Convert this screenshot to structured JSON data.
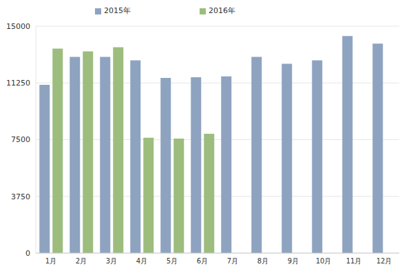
{
  "chart_data": {
    "type": "bar",
    "categories": [
      "1月",
      "2月",
      "3月",
      "4月",
      "5月",
      "6月",
      "7月",
      "8月",
      "9月",
      "10月",
      "11月",
      "12月"
    ],
    "series": [
      {
        "name": "2015年",
        "color": "#8ea3c0",
        "values": [
          11120,
          12970,
          12970,
          12740,
          11580,
          11630,
          11680,
          12970,
          12510,
          12740,
          14350,
          13850
        ]
      },
      {
        "name": "2016年",
        "color": "#9cbd7d",
        "values": [
          13520,
          13340,
          13610,
          7620,
          7570,
          7890,
          null,
          null,
          null,
          null,
          null,
          null
        ]
      }
    ],
    "ylim": [
      0,
      15000
    ],
    "yticks": [
      0,
      3750,
      7500,
      11250,
      15000
    ],
    "grid": true,
    "legend": "top"
  }
}
